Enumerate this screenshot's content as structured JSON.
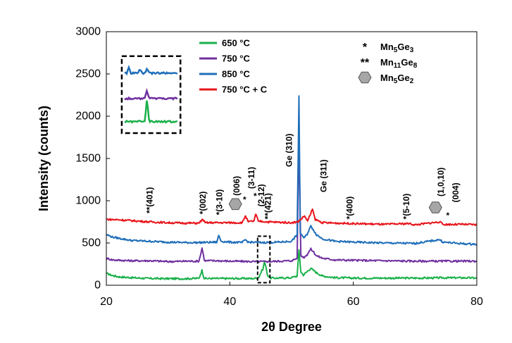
{
  "chart_data": {
    "type": "line",
    "title": "",
    "xlabel": "2θ Degree",
    "ylabel": "Intensity (counts)",
    "xlim": [
      20,
      80
    ],
    "ylim": [
      0,
      3000
    ],
    "xticks": [
      20,
      40,
      60,
      80
    ],
    "yticks": [
      0,
      500,
      1000,
      1500,
      2000,
      2500,
      3000
    ],
    "grid": false,
    "legend_position": "top-center",
    "series": [
      {
        "name": "650 °C",
        "color": "#1ab04a",
        "baseline": 140,
        "points": [
          [
            20,
            140
          ],
          [
            21,
            115
          ],
          [
            22,
            100
          ],
          [
            24,
            90
          ],
          [
            27,
            80
          ],
          [
            30,
            78
          ],
          [
            33,
            78
          ],
          [
            35,
            82
          ],
          [
            35.5,
            180
          ],
          [
            35.8,
            85
          ],
          [
            36,
            80
          ],
          [
            40,
            80
          ],
          [
            44,
            80
          ],
          [
            44.7,
            95
          ],
          [
            45.1,
            160
          ],
          [
            45.4,
            200
          ],
          [
            45.6,
            280
          ],
          [
            45.8,
            230
          ],
          [
            46.1,
            120
          ],
          [
            46.6,
            85
          ],
          [
            48,
            85
          ],
          [
            50,
            90
          ],
          [
            50.9,
            110
          ],
          [
            51.2,
            420
          ],
          [
            51.5,
            160
          ],
          [
            51.9,
            120
          ],
          [
            52.5,
            160
          ],
          [
            53.1,
            200
          ],
          [
            53.5,
            180
          ],
          [
            54,
            150
          ],
          [
            55,
            110
          ],
          [
            57,
            90
          ],
          [
            60,
            85
          ],
          [
            65,
            85
          ],
          [
            70,
            85
          ],
          [
            75,
            88
          ],
          [
            78,
            88
          ],
          [
            80,
            85
          ]
        ]
      },
      {
        "name": "750 °C",
        "color": "#7030a0",
        "baseline": 320,
        "points": [
          [
            20,
            320
          ],
          [
            21,
            300
          ],
          [
            24,
            290
          ],
          [
            27,
            290
          ],
          [
            30,
            280
          ],
          [
            33,
            285
          ],
          [
            35,
            285
          ],
          [
            35.5,
            440
          ],
          [
            35.9,
            290
          ],
          [
            38,
            290
          ],
          [
            40,
            285
          ],
          [
            44,
            280
          ],
          [
            46,
            280
          ],
          [
            48,
            285
          ],
          [
            50,
            290
          ],
          [
            50.9,
            320
          ],
          [
            51.2,
            1800
          ],
          [
            51.5,
            350
          ],
          [
            52,
            330
          ],
          [
            52.5,
            360
          ],
          [
            53.1,
            430
          ],
          [
            53.5,
            400
          ],
          [
            54,
            350
          ],
          [
            55,
            320
          ],
          [
            57,
            300
          ],
          [
            60,
            295
          ],
          [
            65,
            290
          ],
          [
            70,
            285
          ],
          [
            75,
            285
          ],
          [
            80,
            285
          ]
        ]
      },
      {
        "name": "850 °C",
        "color": "#1f6fba",
        "baseline": 580,
        "points": [
          [
            20,
            600
          ],
          [
            21,
            570
          ],
          [
            24,
            530
          ],
          [
            27,
            520
          ],
          [
            30,
            510
          ],
          [
            33,
            505
          ],
          [
            35,
            505
          ],
          [
            37.9,
            510
          ],
          [
            38.2,
            590
          ],
          [
            38.6,
            520
          ],
          [
            40,
            510
          ],
          [
            42,
            505
          ],
          [
            42.5,
            540
          ],
          [
            43,
            510
          ],
          [
            45,
            505
          ],
          [
            48,
            510
          ],
          [
            50,
            520
          ],
          [
            50.9,
            600
          ],
          [
            51.2,
            2240
          ],
          [
            51.4,
            620
          ],
          [
            52,
            560
          ],
          [
            52.5,
            600
          ],
          [
            53.1,
            700
          ],
          [
            53.5,
            660
          ],
          [
            54,
            600
          ],
          [
            55,
            550
          ],
          [
            57,
            520
          ],
          [
            60,
            510
          ],
          [
            65,
            500
          ],
          [
            70,
            495
          ],
          [
            74,
            540
          ],
          [
            74.5,
            510
          ],
          [
            78,
            490
          ],
          [
            80,
            485
          ]
        ]
      },
      {
        "name": "750 °C + C",
        "color": "#e8141b",
        "baseline": 780,
        "points": [
          [
            20,
            780
          ],
          [
            22,
            775
          ],
          [
            24,
            765
          ],
          [
            27,
            750
          ],
          [
            30,
            740
          ],
          [
            33,
            735
          ],
          [
            35,
            735
          ],
          [
            35.6,
            780
          ],
          [
            36,
            740
          ],
          [
            40,
            740
          ],
          [
            42,
            740
          ],
          [
            42.5,
            820
          ],
          [
            43,
            750
          ],
          [
            43.9,
            760
          ],
          [
            44.2,
            840
          ],
          [
            44.6,
            760
          ],
          [
            46,
            750
          ],
          [
            50,
            740
          ],
          [
            51,
            750
          ],
          [
            51.5,
            780
          ],
          [
            52.1,
            820
          ],
          [
            52.6,
            760
          ],
          [
            53.4,
            900
          ],
          [
            53.8,
            780
          ],
          [
            55,
            740
          ],
          [
            60,
            730
          ],
          [
            65,
            720
          ],
          [
            69,
            730
          ],
          [
            70,
            715
          ],
          [
            74,
            750
          ],
          [
            74.5,
            720
          ],
          [
            78,
            720
          ],
          [
            80,
            715
          ]
        ]
      }
    ],
    "peak_labels": [
      {
        "text": "**(401)",
        "x": 27,
        "y": 850,
        "vertical": true
      },
      {
        "text": "*(002)",
        "x": 35.6,
        "y": 840,
        "vertical": true
      },
      {
        "text": "*(3-10)",
        "x": 38.3,
        "y": 830,
        "vertical": true
      },
      {
        "text": "(006)",
        "x": 41.1,
        "y": 1060,
        "vertical": true
      },
      {
        "text": "*",
        "x": 42.4,
        "y": 980,
        "vertical": false
      },
      {
        "text": "(3-11)",
        "x": 43.5,
        "y": 1140,
        "vertical": true
      },
      {
        "text": "*",
        "x": 44.1,
        "y": 1020,
        "vertical": false
      },
      {
        "text": "(2-12)",
        "x": 45.1,
        "y": 930,
        "vertical": true
      },
      {
        "text": "**(421)",
        "x": 46.2,
        "y": 780,
        "vertical": true
      },
      {
        "text": "Ge (310)",
        "x": 49.6,
        "y": 1400,
        "vertical": true
      },
      {
        "text": "Ge  (311)",
        "x": 55.2,
        "y": 1100,
        "vertical": true
      },
      {
        "text": "*(400)",
        "x": 59.4,
        "y": 780,
        "vertical": true
      },
      {
        "text": "*(5-10)",
        "x": 68.6,
        "y": 780,
        "vertical": true
      },
      {
        "text": "(1,0,10)",
        "x": 74.2,
        "y": 1050,
        "vertical": true
      },
      {
        "text": "*",
        "x": 75.3,
        "y": 790,
        "vertical": false
      },
      {
        "text": "(004)",
        "x": 76.6,
        "y": 980,
        "vertical": true
      }
    ],
    "peak_markers": [
      {
        "shape": "hexagon",
        "x": 40.9,
        "y": 960
      },
      {
        "shape": "hexagon",
        "x": 73.3,
        "y": 920
      }
    ],
    "highlight_box": {
      "x_range": [
        44.5,
        46.5
      ],
      "y_range": [
        30,
        580
      ]
    },
    "inset": {
      "x_range": [
        22.5,
        32
      ],
      "y_range": [
        1800,
        2710
      ]
    },
    "phase_key": [
      {
        "symbol": "*",
        "name": "Mn",
        "sub1": "5",
        "mid": "Ge",
        "sub2": "3"
      },
      {
        "symbol": "**",
        "name": "Mn",
        "sub1": "11",
        "mid": "Ge",
        "sub2": "8"
      },
      {
        "symbol": "hexagon",
        "name": "Mn",
        "sub1": "5",
        "mid": "Ge",
        "sub2": "2"
      }
    ]
  }
}
